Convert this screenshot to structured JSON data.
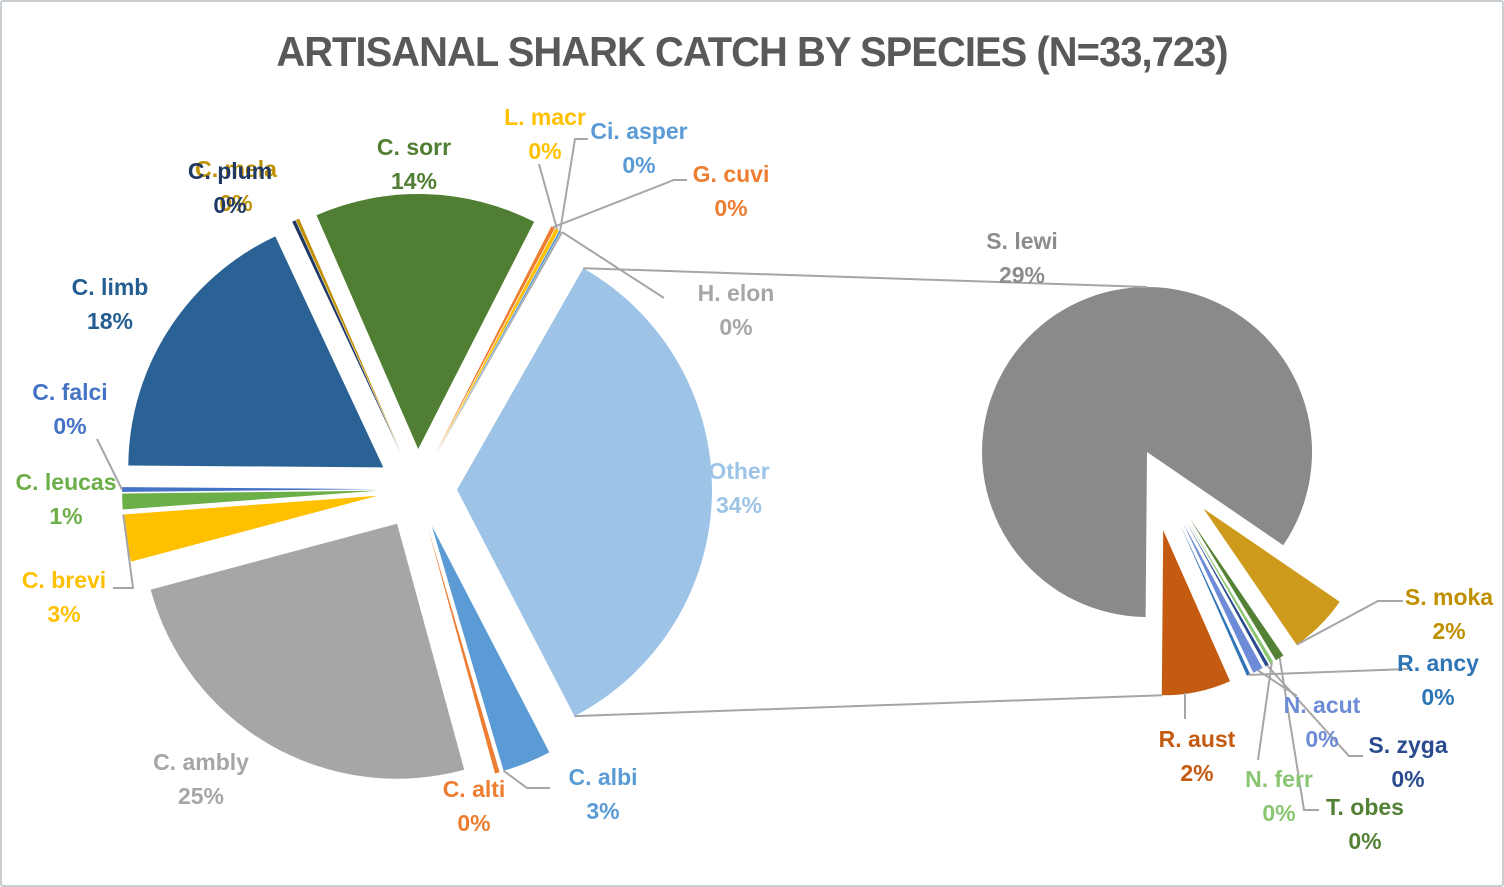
{
  "chart_data": {
    "type": "pie",
    "variant": "pie-of-pie",
    "title": "ARTISANAL SHARK CATCH BY SPECIES (N=33,723)",
    "title_color": "#595959",
    "sample_size": "33,723",
    "connector_color": "#A6A6A6",
    "legend_position": "none",
    "primary_pie": {
      "slices": [
        {
          "name": "C. sorr",
          "pct": "14%",
          "value": 14.1,
          "color": "#507E32"
        },
        {
          "name": "G. cuvi",
          "pct": "0%",
          "value": 0.25,
          "color": "#ED7D31"
        },
        {
          "name": "L. macr",
          "pct": "0%",
          "value": 0.25,
          "color": "#FFC000"
        },
        {
          "name": "Ci. asper",
          "pct": "0%",
          "value": 0.12,
          "color": "#5B9BD5"
        },
        {
          "name": "H. elon",
          "pct": "0%",
          "value": 0.12,
          "color": "#A6A6A6"
        },
        {
          "name": "Other",
          "pct": "34%",
          "value": 34.3,
          "color": "#9DC3E6"
        },
        {
          "name": "C. albi",
          "pct": "3%",
          "value": 3.1,
          "color": "#5B9BD5"
        },
        {
          "name": "C. alti",
          "pct": "0%",
          "value": 0.3,
          "color": "#ED7D31"
        },
        {
          "name": "C. ambly",
          "pct": "25%",
          "value": 25.2,
          "color": "#A6A6A6"
        },
        {
          "name": "C. brevi",
          "pct": "3%",
          "value": 3.0,
          "color": "#FFC000"
        },
        {
          "name": "C. leucas",
          "pct": "1%",
          "value": 1.0,
          "color": "#6CAE47"
        },
        {
          "name": "C. falci",
          "pct": "0%",
          "value": 0.3,
          "color": "#4472C4"
        },
        {
          "name": "C. limb",
          "pct": "18%",
          "value": 18.0,
          "color": "#2B6295",
          "label_color": "#255E91"
        },
        {
          "name": "C. plum",
          "pct": "0%",
          "value": 0.22,
          "color": "#203864"
        },
        {
          "name": "C. mela",
          "pct": "0%",
          "value": 0.22,
          "color": "#BF9000"
        }
      ]
    },
    "secondary_pie": {
      "represents": "Other",
      "slices": [
        {
          "name": "S. lewi",
          "pct": "29%",
          "value": 29.3,
          "color": "#8A8A8A",
          "label_color": "#8C8C8C"
        },
        {
          "name": "S. moka",
          "pct": "2%",
          "value": 2.05,
          "color": "#CE9A1B",
          "label_color": "#BF8F00"
        },
        {
          "name": "T. obes",
          "pct": "0%",
          "value": 0.3,
          "color": "#538135"
        },
        {
          "name": "N. ferr",
          "pct": "0%",
          "value": 0.12,
          "color": "#8AC672"
        },
        {
          "name": "S. zyga",
          "pct": "0%",
          "value": 0.12,
          "color": "#2A4B8F"
        },
        {
          "name": "N. acut",
          "pct": "0%",
          "value": 0.35,
          "color": "#6D8BD6"
        },
        {
          "name": "R. ancy",
          "pct": "0%",
          "value": 0.12,
          "color": "#2E75B6"
        },
        {
          "name": "R. aust",
          "pct": "2%",
          "value": 2.35,
          "color": "#C55A11"
        }
      ]
    }
  }
}
